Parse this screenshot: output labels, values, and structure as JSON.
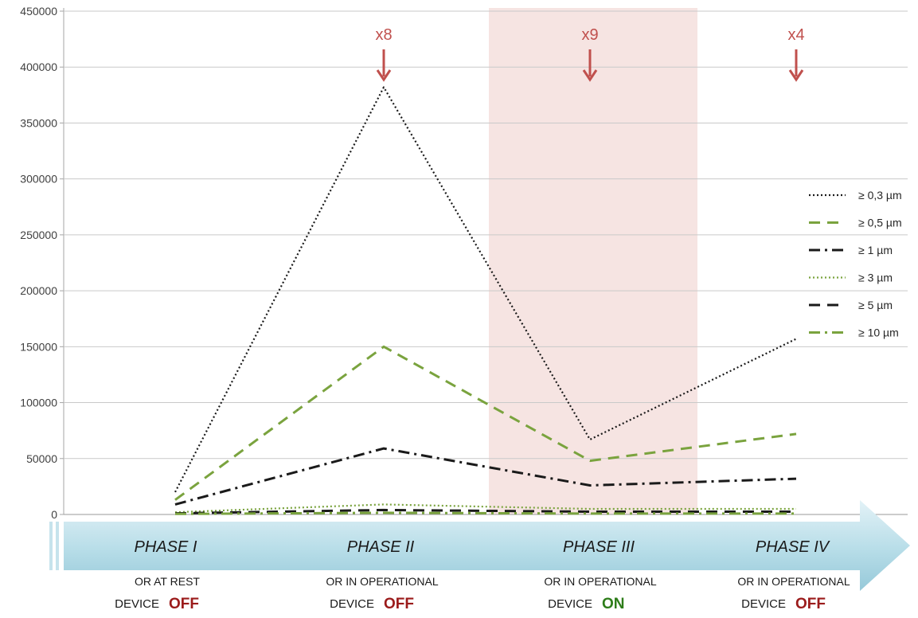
{
  "colors": {
    "arrow_accent": "#c0504d",
    "off": "#9b1b1b",
    "on": "#2e7d1a",
    "shaded_band": "#f6e4e2",
    "phase_arrow_light": "#dbeef4",
    "phase_arrow_dark": "#9ccddc"
  },
  "chart_data": {
    "type": "line",
    "title": "",
    "xlabel": "",
    "ylabel": "",
    "ylim": [
      0,
      450000
    ],
    "yticks": [
      "0",
      "50000",
      "100000",
      "150000",
      "200000",
      "250000",
      "300000",
      "350000",
      "400000",
      "450000"
    ],
    "categories": [
      "PHASE I",
      "PHASE II",
      "PHASE III",
      "PHASE IV"
    ],
    "shaded_category": "PHASE III",
    "legend_position": "right",
    "series": [
      {
        "name": "≥ 0,3 µm",
        "values": [
          20000,
          382000,
          67000,
          157000
        ],
        "color": "#1a1a1a",
        "dash": "dotted"
      },
      {
        "name": "≥ 0,5 µm",
        "values": [
          13000,
          150000,
          48000,
          72000
        ],
        "color": "#7aa33e",
        "dash": "dashed"
      },
      {
        "name": "≥ 1 µm",
        "values": [
          9000,
          59000,
          26000,
          32000
        ],
        "color": "#1a1a1a",
        "dash": "dashdot"
      },
      {
        "name": "≥ 3 µm",
        "values": [
          2000,
          9000,
          5000,
          5000
        ],
        "color": "#7aa33e",
        "dash": "dotted"
      },
      {
        "name": "≥ 5 µm",
        "values": [
          1000,
          4000,
          2500,
          2500
        ],
        "color": "#1a1a1a",
        "dash": "dashed"
      },
      {
        "name": "≥ 10 µm",
        "values": [
          500,
          1500,
          800,
          800
        ],
        "color": "#7aa33e",
        "dash": "dashdot"
      }
    ],
    "annotations": [
      {
        "label": "x8",
        "category": "PHASE II"
      },
      {
        "label": "x9",
        "category": "PHASE III"
      },
      {
        "label": "x4",
        "category": "PHASE IV"
      }
    ],
    "phases": [
      {
        "title": "PHASE I",
        "condition": "OR AT REST",
        "device_label": "DEVICE",
        "state": "OFF"
      },
      {
        "title": "PHASE II",
        "condition": "OR IN OPERATIONAL",
        "device_label": "DEVICE",
        "state": "OFF"
      },
      {
        "title": "PHASE III",
        "condition": "OR IN OPERATIONAL",
        "device_label": "DEVICE",
        "state": "ON"
      },
      {
        "title": "PHASE IV",
        "condition": "OR IN OPERATIONAL",
        "device_label": "DEVICE",
        "state": "OFF"
      }
    ]
  }
}
